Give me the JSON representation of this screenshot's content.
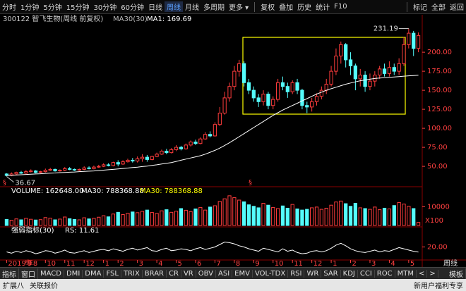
{
  "toolbar": {
    "groups": [
      {
        "items": [
          "分时",
          "1分钟",
          "5分钟",
          "15分钟",
          "30分钟",
          "60分钟",
          "日线",
          "周线",
          "月线",
          "多周期",
          "更多 ▾"
        ]
      },
      {
        "items": [
          "复权",
          "叠加",
          "历史",
          "统计",
          "F10"
        ]
      },
      {
        "items": [
          "标记",
          "全部",
          "返回"
        ]
      }
    ],
    "active_group": 0,
    "active_item": 7
  },
  "info": {
    "symbol": "300122 智飞生物(周线 前复权)",
    "indicator": "MA30(30)",
    "ma_value": "MA1: 169.69"
  },
  "chart_data": {
    "type": "candlestick",
    "up_color": "#ff3c3c",
    "down_color": "#54fcfc",
    "ma_color": "#ffffff",
    "categories": [
      "2019年8",
      null,
      null,
      null,
      "9",
      null,
      null,
      null,
      "10",
      null,
      null,
      null,
      "11",
      null,
      null,
      null,
      "12",
      null,
      null,
      null,
      "1",
      null,
      null,
      "2",
      null,
      null,
      null,
      "3",
      null,
      null,
      null,
      "4",
      null,
      null,
      null,
      "5",
      null,
      null,
      null,
      "6",
      null,
      null,
      null,
      "7",
      null,
      null,
      null,
      "8",
      null,
      null,
      null,
      "9",
      null,
      null,
      null,
      "10",
      null,
      null,
      null,
      "11",
      null,
      null,
      null,
      "12",
      null,
      null,
      null,
      "1",
      null,
      null,
      null,
      "2",
      null,
      null,
      null,
      "3",
      null,
      null,
      null,
      "4",
      null,
      null,
      null,
      "5",
      null,
      null
    ],
    "candles": [
      [
        40,
        38,
        41,
        37
      ],
      [
        38,
        40,
        42,
        37
      ],
      [
        40,
        42,
        43,
        39
      ],
      [
        42,
        41,
        44,
        40
      ],
      [
        41,
        43,
        45,
        40
      ],
      [
        43,
        44,
        46,
        42
      ],
      [
        44,
        42,
        45,
        41
      ],
      [
        42,
        43,
        44,
        41
      ],
      [
        43,
        45,
        47,
        42
      ],
      [
        45,
        46,
        48,
        44
      ],
      [
        46,
        44,
        47,
        43
      ],
      [
        44,
        45,
        46,
        43
      ],
      [
        45,
        47,
        49,
        44
      ],
      [
        47,
        46,
        49,
        45
      ],
      [
        46,
        45,
        47,
        44
      ],
      [
        45,
        46,
        47,
        44
      ],
      [
        46,
        48,
        50,
        45
      ],
      [
        48,
        47,
        50,
        46
      ],
      [
        47,
        49,
        51,
        46
      ],
      [
        49,
        50,
        52,
        48
      ],
      [
        50,
        52,
        54,
        49
      ],
      [
        52,
        51,
        54,
        50
      ],
      [
        51,
        55,
        56,
        50
      ],
      [
        55,
        53,
        58,
        50
      ],
      [
        53,
        56,
        58,
        52
      ],
      [
        56,
        58,
        60,
        55
      ],
      [
        58,
        57,
        61,
        55
      ],
      [
        57,
        60,
        63,
        55
      ],
      [
        60,
        62,
        66,
        56
      ],
      [
        62,
        59,
        65,
        56
      ],
      [
        59,
        63,
        64,
        58
      ],
      [
        63,
        66,
        68,
        62
      ],
      [
        66,
        70,
        72,
        65
      ],
      [
        70,
        68,
        73,
        66
      ],
      [
        68,
        72,
        74,
        67
      ],
      [
        72,
        75,
        78,
        70
      ],
      [
        75,
        73,
        77,
        71
      ],
      [
        73,
        78,
        80,
        72
      ],
      [
        78,
        82,
        84,
        76
      ],
      [
        82,
        80,
        85,
        78
      ],
      [
        80,
        86,
        88,
        79
      ],
      [
        86,
        92,
        95,
        85
      ],
      [
        92,
        90,
        96,
        88
      ],
      [
        90,
        105,
        108,
        89
      ],
      [
        105,
        120,
        128,
        103
      ],
      [
        120,
        140,
        148,
        118
      ],
      [
        140,
        155,
        160,
        135
      ],
      [
        155,
        175,
        182,
        150
      ],
      [
        175,
        185,
        190,
        168
      ],
      [
        185,
        160,
        188,
        155
      ],
      [
        160,
        150,
        165,
        145
      ],
      [
        150,
        140,
        155,
        135
      ],
      [
        140,
        135,
        145,
        128
      ],
      [
        135,
        145,
        150,
        130
      ],
      [
        145,
        130,
        148,
        125
      ],
      [
        130,
        138,
        142,
        125
      ],
      [
        138,
        160,
        165,
        135
      ],
      [
        160,
        155,
        168,
        150
      ],
      [
        155,
        148,
        160,
        140
      ],
      [
        148,
        160,
        163,
        145
      ],
      [
        160,
        150,
        165,
        145
      ],
      [
        150,
        130,
        152,
        125
      ],
      [
        130,
        128,
        135,
        120
      ],
      [
        128,
        135,
        140,
        122
      ],
      [
        135,
        142,
        146,
        130
      ],
      [
        142,
        150,
        155,
        138
      ],
      [
        150,
        158,
        165,
        145
      ],
      [
        158,
        175,
        182,
        155
      ],
      [
        175,
        195,
        205,
        170
      ],
      [
        195,
        210,
        214,
        185
      ],
      [
        210,
        190,
        212,
        180
      ],
      [
        190,
        182,
        200,
        170
      ],
      [
        182,
        165,
        185,
        150
      ],
      [
        165,
        170,
        178,
        155
      ],
      [
        170,
        155,
        175,
        148
      ],
      [
        155,
        162,
        172,
        150
      ],
      [
        162,
        170,
        175,
        155
      ],
      [
        170,
        178,
        182,
        165
      ],
      [
        178,
        172,
        185,
        168
      ],
      [
        172,
        180,
        188,
        168
      ],
      [
        180,
        175,
        185,
        170
      ],
      [
        175,
        185,
        192,
        170
      ],
      [
        185,
        210,
        220,
        182
      ],
      [
        210,
        225,
        231.19,
        205
      ],
      [
        225,
        205,
        228,
        195
      ],
      [
        205,
        222,
        226,
        200
      ]
    ],
    "ma30": {
      "values": [
        38,
        38.3,
        38.6,
        39,
        39.3,
        39.7,
        40,
        40.3,
        40.7,
        41,
        41.3,
        41.7,
        42,
        42.3,
        42.6,
        43,
        43.3,
        43.7,
        44,
        44.5,
        45,
        45.5,
        46,
        46.6,
        47.2,
        47.8,
        48.4,
        49,
        49.7,
        50.4,
        51.2,
        52,
        53,
        54,
        55,
        56.5,
        58,
        59.5,
        61,
        62.5,
        64,
        66,
        68.5,
        71,
        74,
        77.5,
        81,
        85,
        89,
        93,
        97,
        101,
        105,
        109,
        113,
        117,
        120.5,
        124,
        127,
        130,
        133,
        136,
        139,
        142,
        145,
        147.5,
        150,
        152,
        154,
        156,
        158,
        159.5,
        161,
        162.5,
        163.5,
        164.5,
        165.5,
        166,
        166.5,
        167,
        167.5,
        168,
        168.5,
        169,
        169.4,
        169.69
      ]
    },
    "ylim": [
      26,
      239
    ],
    "yticks": [
      {
        "value": 50,
        "label": "50.00"
      },
      {
        "value": 75,
        "label": "75.00"
      },
      {
        "value": 100,
        "label": "100.00"
      },
      {
        "value": 125,
        "label": "125.00"
      },
      {
        "value": 150,
        "label": "150.00"
      },
      {
        "value": 175,
        "label": "175.00"
      },
      {
        "value": 200,
        "label": "200.00"
      }
    ],
    "high_label": 231.19,
    "low_label": 36.67,
    "markers": [
      "§",
      "§"
    ]
  },
  "volume": {
    "header": [
      "VOLUME: 162648.00",
      "MA30: 788368.88",
      "MA30: 788368.88"
    ],
    "unit": "X100",
    "values": [
      3200,
      2800,
      3500,
      3000,
      3800,
      3300,
      2900,
      3100,
      4200,
      3900,
      3000,
      3400,
      4500,
      3600,
      3200,
      3000,
      4100,
      3500,
      3800,
      4400,
      5200,
      4600,
      6100,
      7000,
      5800,
      6500,
      7200,
      6800,
      7500,
      8200,
      6900,
      6400,
      7800,
      8400,
      7000,
      7600,
      9000,
      8100,
      7400,
      8800,
      9600,
      8200,
      9800,
      10500,
      12800,
      14200,
      15800,
      14800,
      13500,
      12600,
      11000,
      10200,
      9400,
      11800,
      10800,
      9600,
      9000,
      10400,
      9200,
      11200,
      8800,
      8200,
      8600,
      9400,
      9800,
      8600,
      9200,
      10800,
      12500,
      13000,
      11600,
      10200,
      11800,
      9400,
      9000,
      8600,
      9800,
      8400,
      9200,
      8800,
      10600,
      12200,
      11400,
      10200,
      9000,
      1626.48
    ],
    "ylim": [
      0,
      16500
    ],
    "yticks": [
      10000
    ]
  },
  "rs": {
    "header": [
      "强弱指标(30)",
      "RS: 11.61"
    ],
    "color": "#ffffff",
    "values": [
      12,
      10,
      13,
      11,
      14,
      12,
      9,
      11,
      14,
      13,
      10,
      12,
      15,
      11,
      10,
      12,
      14,
      11,
      13,
      15,
      16,
      14,
      17,
      15,
      13,
      16,
      18,
      15,
      17,
      19,
      14,
      13,
      16,
      18,
      14,
      15,
      17,
      16,
      14,
      17,
      19,
      16,
      18,
      20,
      24,
      28,
      27,
      25,
      22,
      20,
      17,
      15,
      13,
      18,
      16,
      14,
      12,
      17,
      13,
      15,
      11,
      9,
      10,
      13,
      14,
      12,
      14,
      18,
      23,
      26,
      22,
      17,
      14,
      12,
      11,
      13,
      15,
      12,
      14,
      13,
      16,
      19,
      17,
      15,
      13,
      11.61
    ],
    "ylim": [
      0,
      40
    ],
    "yticks": [
      {
        "value": 20,
        "label": "20.00"
      }
    ]
  },
  "tabs": {
    "items": [
      "指标",
      "窗口",
      "MACD",
      "DMI",
      "DMA",
      "FSL",
      "TRIX",
      "BRAR",
      "CR",
      "VR",
      "OBV",
      "ASI",
      "EMV",
      "VOL-TDX",
      "RSI",
      "WR",
      "SAR",
      "KDJ",
      "CCI",
      "ROC",
      "MTM",
      "<",
      ">"
    ],
    "right": "模板",
    "period": "周线"
  },
  "status": {
    "left": [
      "扩展八",
      "关联报价"
    ],
    "right": "新用户福利专享"
  }
}
